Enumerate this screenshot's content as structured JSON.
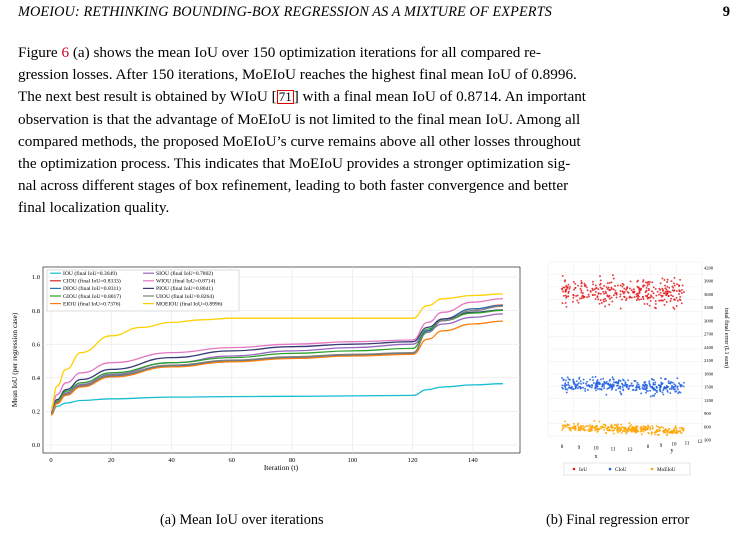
{
  "header": {
    "title": "MOEIOU: RETHINKING BOUNDING-BOX REGRESSION AS A MIXTURE OF EXPERTS",
    "page": "9"
  },
  "paragraph": {
    "lines": [
      "Figure 6 (a) shows the mean IoU over 150 optimization iterations for all compared re-",
      "gression losses. After 150 iterations, MoEIoU reaches the highest final mean IoU of 0.8996.",
      "The next best result is obtained by WIoU [71] with a final mean IoU of 0.8714. An important",
      "observation is that the advantage of MoEIoU is not limited to the final mean IoU. Among all",
      "compared methods, the proposed MoEIoU’s curve remains above all other losses throughout",
      "the optimization process. This indicates that MoEIoU provides a stronger optimization sig-",
      "nal across different stages of box refinement, leading to both faster convergence and better",
      "final localization quality."
    ],
    "figure_ref": "6",
    "citation": "71"
  },
  "chart_data": [
    {
      "type": "line",
      "xlabel": "Iteration (t)",
      "ylabel": "Mean IoU (per regression case)",
      "xlim": [
        0,
        150
      ],
      "ylim": [
        0.0,
        1.0
      ],
      "xticks": [
        "0",
        "20",
        "40",
        "60",
        "80",
        "100",
        "120",
        "140"
      ],
      "yticks": [
        "0.0",
        "0.2",
        "0.4",
        "0.6",
        "0.8",
        "1.0"
      ],
      "grid": true,
      "legend_position": "top-left",
      "legend": [
        "IOU  (final IoU=0.3649)",
        "SIOU  (final IoU=0.7802)",
        "CIOU  (final IoU=0.8333)",
        "WIOU  (final IoU=0.8714)",
        "DIOU  (final IoU=0.8311)",
        "PIOU  (final IoU=0.8041)",
        "GIOU  (final IoU=0.8017)",
        "UIOU  (final IoU=0.8264)",
        "EIOU  (final IoU=0.7376)",
        "MOEIOU  (final IoU=0.8996)"
      ],
      "series": [
        {
          "name": "IOU",
          "color": "#17becf",
          "x": [
            0,
            2,
            5,
            10,
            20,
            40,
            60,
            80,
            100,
            120,
            125,
            130,
            140,
            150
          ],
          "y": [
            0.18,
            0.23,
            0.25,
            0.265,
            0.275,
            0.285,
            0.288,
            0.29,
            0.292,
            0.295,
            0.33,
            0.345,
            0.358,
            0.3649
          ]
        },
        {
          "name": "SIOU",
          "color": "#9467bd",
          "x": [
            0,
            2,
            5,
            10,
            20,
            40,
            60,
            80,
            100,
            120,
            125,
            130,
            140,
            150
          ],
          "y": [
            0.19,
            0.26,
            0.31,
            0.36,
            0.42,
            0.49,
            0.53,
            0.56,
            0.58,
            0.6,
            0.68,
            0.72,
            0.76,
            0.7802
          ]
        },
        {
          "name": "CIOU",
          "color": "#d62728",
          "x": [
            0,
            2,
            5,
            10,
            20,
            40,
            60,
            80,
            100,
            120,
            125,
            130,
            140,
            150
          ],
          "y": [
            0.18,
            0.25,
            0.3,
            0.35,
            0.41,
            0.47,
            0.5,
            0.52,
            0.535,
            0.545,
            0.68,
            0.75,
            0.81,
            0.8333
          ]
        },
        {
          "name": "WIOU",
          "color": "#e377c2",
          "x": [
            0,
            2,
            5,
            10,
            20,
            40,
            60,
            80,
            100,
            120,
            125,
            130,
            140,
            150
          ],
          "y": [
            0.2,
            0.3,
            0.37,
            0.43,
            0.49,
            0.55,
            0.58,
            0.6,
            0.615,
            0.625,
            0.73,
            0.79,
            0.85,
            0.8714
          ]
        },
        {
          "name": "DIOU",
          "color": "#1f77b4",
          "x": [
            0,
            2,
            5,
            10,
            20,
            40,
            60,
            80,
            100,
            120,
            125,
            130,
            140,
            150
          ],
          "y": [
            0.18,
            0.25,
            0.3,
            0.35,
            0.41,
            0.47,
            0.5,
            0.52,
            0.535,
            0.545,
            0.68,
            0.75,
            0.81,
            0.8311
          ]
        },
        {
          "name": "PIOU",
          "color": "#393b79",
          "x": [
            0,
            2,
            5,
            10,
            20,
            40,
            60,
            80,
            100,
            120,
            125,
            130,
            140,
            150
          ],
          "y": [
            0.19,
            0.27,
            0.33,
            0.39,
            0.45,
            0.52,
            0.56,
            0.585,
            0.6,
            0.615,
            0.7,
            0.75,
            0.79,
            0.8041
          ]
        },
        {
          "name": "GIOU",
          "color": "#2ca02c",
          "x": [
            0,
            2,
            5,
            10,
            20,
            40,
            60,
            80,
            100,
            120,
            125,
            130,
            140,
            150
          ],
          "y": [
            0.19,
            0.26,
            0.32,
            0.37,
            0.43,
            0.49,
            0.52,
            0.545,
            0.56,
            0.575,
            0.69,
            0.74,
            0.785,
            0.8017
          ]
        },
        {
          "name": "UIOU",
          "color": "#7f7f7f",
          "x": [
            0,
            2,
            5,
            10,
            20,
            40,
            60,
            80,
            100,
            120,
            125,
            130,
            140,
            150
          ],
          "y": [
            0.18,
            0.255,
            0.305,
            0.355,
            0.415,
            0.475,
            0.505,
            0.525,
            0.54,
            0.55,
            0.67,
            0.74,
            0.8,
            0.8264
          ]
        },
        {
          "name": "EIOU",
          "color": "#ff7f0e",
          "x": [
            0,
            2,
            5,
            10,
            20,
            40,
            60,
            80,
            100,
            120,
            125,
            130,
            140,
            150
          ],
          "y": [
            0.18,
            0.245,
            0.295,
            0.345,
            0.405,
            0.465,
            0.495,
            0.515,
            0.53,
            0.54,
            0.63,
            0.68,
            0.72,
            0.7376
          ]
        },
        {
          "name": "MOEIOU",
          "color": "#ffd000",
          "x": [
            0,
            2,
            5,
            10,
            20,
            30,
            40,
            50,
            60,
            80,
            100,
            120,
            125,
            130,
            140,
            150
          ],
          "y": [
            0.22,
            0.35,
            0.45,
            0.55,
            0.65,
            0.7,
            0.73,
            0.745,
            0.755,
            0.755,
            0.755,
            0.755,
            0.83,
            0.87,
            0.89,
            0.8996
          ]
        }
      ]
    },
    {
      "type": "scatter",
      "subtype": "3d-scatter",
      "xlabel": "x",
      "ylabel": "y",
      "zlabel": "total final error (L1 sum)",
      "x_ticks": [
        "8",
        "9",
        "10",
        "11",
        "12"
      ],
      "y_ticks": [
        "8",
        "9",
        "10",
        "11",
        "12"
      ],
      "z_ticks": [
        "300",
        "600",
        "900",
        "1200",
        "1500",
        "1800",
        "2100",
        "2400",
        "2700",
        "3000",
        "3300",
        "3600",
        "3900",
        "4200"
      ],
      "legend": [
        "IoU",
        "CIoU",
        "MoEIoU"
      ],
      "legend_position": "bottom",
      "series": [
        {
          "name": "IoU",
          "color": "#e31a1c",
          "z_center": 3650,
          "z_spread": 300
        },
        {
          "name": "CIoU",
          "color": "#1f5fe0",
          "z_center": 1530,
          "z_spread": 180
        },
        {
          "name": "MoEIoU",
          "color": "#ffa500",
          "z_center": 550,
          "z_spread": 110
        }
      ]
    }
  ],
  "captions": {
    "a": "(a) Mean IoU over iterations",
    "b": "(b) Final regression error"
  }
}
